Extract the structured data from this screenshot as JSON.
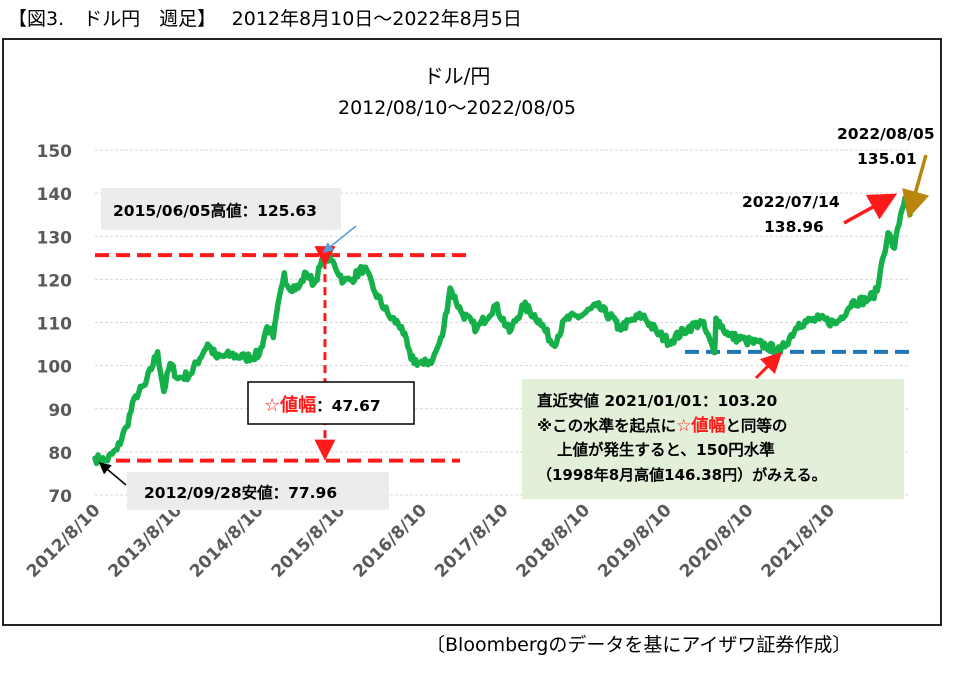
{
  "figure": {
    "heading": "【図3.　ドル円　週足】　 2012年8月10日～2022年8月5日",
    "source": "〔Bloombergのデータを基にアイザワ証券作成〕"
  },
  "chart_data": {
    "type": "line",
    "title": "ドル/円",
    "subtitle": "2012/08/10～2022/08/05",
    "ylim": [
      70,
      150
    ],
    "yticks": [
      70,
      80,
      90,
      100,
      110,
      120,
      130,
      140,
      150
    ],
    "xlim": [
      "2012/8/10",
      "2022/8/5"
    ],
    "xticks": [
      "2012/8/10",
      "2013/8/10",
      "2014/8/10",
      "2015/8/10",
      "2016/8/10",
      "2017/8/10",
      "2018/8/10",
      "2019/8/10",
      "2020/8/10",
      "2021/8/10"
    ],
    "grid": true,
    "line_color": "#16b04b",
    "series": [
      {
        "points": [
          [
            "2012-08-10",
            78.5
          ],
          [
            "2012-09-28",
            77.96
          ],
          [
            "2012-11-16",
            80.5
          ],
          [
            "2012-12-28",
            85.8
          ],
          [
            "2013-02-08",
            93.0
          ],
          [
            "2013-03-22",
            95.5
          ],
          [
            "2013-05-17",
            103.2
          ],
          [
            "2013-06-14",
            94.0
          ],
          [
            "2013-07-12",
            100.5
          ],
          [
            "2013-08-16",
            97.0
          ],
          [
            "2013-10-11",
            98.0
          ],
          [
            "2013-12-27",
            105.0
          ],
          [
            "2014-02-07",
            101.8
          ],
          [
            "2014-04-11",
            102.5
          ],
          [
            "2014-06-13",
            101.8
          ],
          [
            "2014-08-15",
            102.6
          ],
          [
            "2014-09-19",
            109.0
          ],
          [
            "2014-10-17",
            106.5
          ],
          [
            "2014-11-21",
            118.0
          ],
          [
            "2014-12-05",
            121.5
          ],
          [
            "2014-12-19",
            118.5
          ],
          [
            "2015-02-06",
            118.0
          ],
          [
            "2015-03-13",
            121.5
          ],
          [
            "2015-04-17",
            119.0
          ],
          [
            "2015-06-05",
            125.63
          ],
          [
            "2015-07-17",
            123.5
          ],
          [
            "2015-08-28",
            119.5
          ],
          [
            "2015-10-02",
            120.0
          ],
          [
            "2015-11-27",
            122.8
          ],
          [
            "2016-01-15",
            117.0
          ],
          [
            "2016-03-18",
            111.5
          ],
          [
            "2016-05-13",
            109.0
          ],
          [
            "2016-06-24",
            101.5
          ],
          [
            "2016-08-19",
            100.3
          ],
          [
            "2016-09-30",
            101.5
          ],
          [
            "2016-11-11",
            106.8
          ],
          [
            "2016-12-16",
            118.0
          ],
          [
            "2017-02-03",
            112.5
          ],
          [
            "2017-04-14",
            108.5
          ],
          [
            "2017-07-07",
            114.0
          ],
          [
            "2017-09-08",
            107.8
          ],
          [
            "2017-11-10",
            114.0
          ],
          [
            "2018-01-19",
            110.5
          ],
          [
            "2018-03-23",
            104.8
          ],
          [
            "2018-05-18",
            110.8
          ],
          [
            "2018-07-20",
            111.5
          ],
          [
            "2018-10-05",
            113.8
          ],
          [
            "2018-12-28",
            110.3
          ],
          [
            "2019-01-04",
            108.5
          ],
          [
            "2019-04-26",
            111.7
          ],
          [
            "2019-06-28",
            107.8
          ],
          [
            "2019-08-23",
            105.5
          ],
          [
            "2019-11-15",
            108.7
          ],
          [
            "2020-01-17",
            110.1
          ],
          [
            "2020-03-13",
            103.0
          ],
          [
            "2020-03-20",
            111.0
          ],
          [
            "2020-05-15",
            107.0
          ],
          [
            "2020-07-31",
            105.8
          ],
          [
            "2020-10-30",
            104.6
          ],
          [
            "2021-01-01",
            103.2
          ],
          [
            "2021-03-26",
            109.8
          ],
          [
            "2021-06-25",
            110.8
          ],
          [
            "2021-09-10",
            109.8
          ],
          [
            "2021-11-19",
            114.7
          ],
          [
            "2022-01-28",
            115.3
          ],
          [
            "2022-03-11",
            117.3
          ],
          [
            "2022-03-25",
            122.0
          ],
          [
            "2022-04-29",
            130.8
          ],
          [
            "2022-05-27",
            127.2
          ],
          [
            "2022-06-24",
            135.0
          ],
          [
            "2022-07-14",
            138.96
          ],
          [
            "2022-08-05",
            135.01
          ]
        ]
      }
    ],
    "hlines": [
      {
        "y": 125.63,
        "color": "#ff1a1a",
        "dashed": true
      },
      {
        "y": 77.96,
        "color": "#ff1a1a",
        "dashed": true
      },
      {
        "y": 103.2,
        "color": "#1f77b4",
        "dashed": true
      }
    ],
    "annotations": {
      "high_label": "2015/06/05高値：125.63",
      "low_label": "2012/09/28安値：77.96",
      "range_label_star": "☆値幅",
      "range_label_value": "：47.67",
      "recent_low_title": "直近安値 2021/01/01：103.20",
      "recent_low_line2_pre": "※この水準を起点に",
      "recent_low_line2_star": "☆値幅",
      "recent_low_line2_post": "と同等の",
      "recent_low_line3": "上値が発生すると、150円水準",
      "recent_low_line4": "（1998年8月高値146.38円）がみえる。",
      "peak_date": "2022/07/14",
      "peak_value": "138.96",
      "last_date": "2022/08/05",
      "last_value": "135.01"
    }
  }
}
